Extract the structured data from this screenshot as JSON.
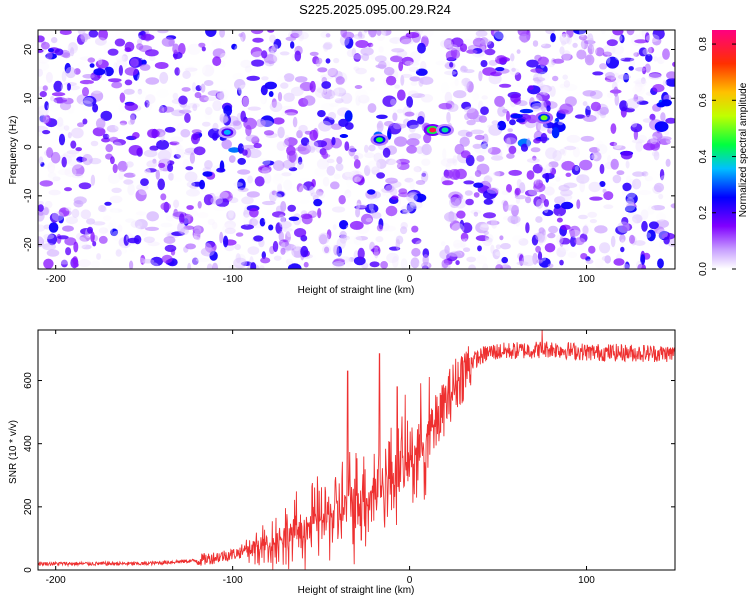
{
  "title": "S225.2025.095.00.29.R24",
  "chart_data": [
    {
      "type": "heatmap",
      "xlabel": "Height of straight line (km)",
      "ylabel": "Frequency (Hz)",
      "xlim": [
        -210,
        150
      ],
      "ylim": [
        -25,
        24
      ],
      "x_ticks": [
        -200,
        -100,
        0,
        100
      ],
      "y_ticks": [
        -20,
        -10,
        0,
        10,
        20
      ],
      "colorbar": {
        "label": "Normalized spectral amplitude",
        "range": [
          0,
          0.85
        ],
        "ticks": [
          0.0,
          0.2,
          0.4,
          0.6,
          0.8
        ],
        "colors": [
          "#ffffff",
          "#8a00ff",
          "#0000ff",
          "#00c8ff",
          "#00ff40",
          "#c8ff00",
          "#ffc800",
          "#ff3000",
          "#ff0080"
        ]
      },
      "peaks": [
        {
          "x": -103,
          "y": 3,
          "amp": 0.35
        },
        {
          "x": -17,
          "y": 1.5,
          "amp": 0.45
        },
        {
          "x": 13,
          "y": 3.5,
          "amp": 0.8
        },
        {
          "x": 20,
          "y": 3.5,
          "amp": 0.4
        },
        {
          "x": 76,
          "y": 6,
          "amp": 0.5
        }
      ]
    },
    {
      "type": "line",
      "xlabel": "Height of straight line (km)",
      "ylabel": "SNR (10 * v/v)",
      "xlim": [
        -210,
        150
      ],
      "ylim": [
        0,
        760
      ],
      "x_ticks": [
        -200,
        -100,
        0,
        100
      ],
      "y_ticks": [
        0,
        200,
        400,
        600
      ],
      "series_color": "#ee3030",
      "trend": [
        {
          "x": -210,
          "y": 20
        },
        {
          "x": -150,
          "y": 20
        },
        {
          "x": -120,
          "y": 30
        },
        {
          "x": -100,
          "y": 50
        },
        {
          "x": -80,
          "y": 80
        },
        {
          "x": -60,
          "y": 130
        },
        {
          "x": -40,
          "y": 190
        },
        {
          "x": -20,
          "y": 250
        },
        {
          "x": 0,
          "y": 350
        },
        {
          "x": 15,
          "y": 460
        },
        {
          "x": 25,
          "y": 580
        },
        {
          "x": 35,
          "y": 660
        },
        {
          "x": 45,
          "y": 690
        },
        {
          "x": 80,
          "y": 700
        },
        {
          "x": 100,
          "y": 690
        },
        {
          "x": 150,
          "y": 685
        }
      ],
      "spikes": [
        {
          "x": -35,
          "y": 630
        },
        {
          "x": -17,
          "y": 685
        },
        {
          "x": -7,
          "y": 580
        },
        {
          "x": 75,
          "y": 760
        }
      ]
    }
  ]
}
